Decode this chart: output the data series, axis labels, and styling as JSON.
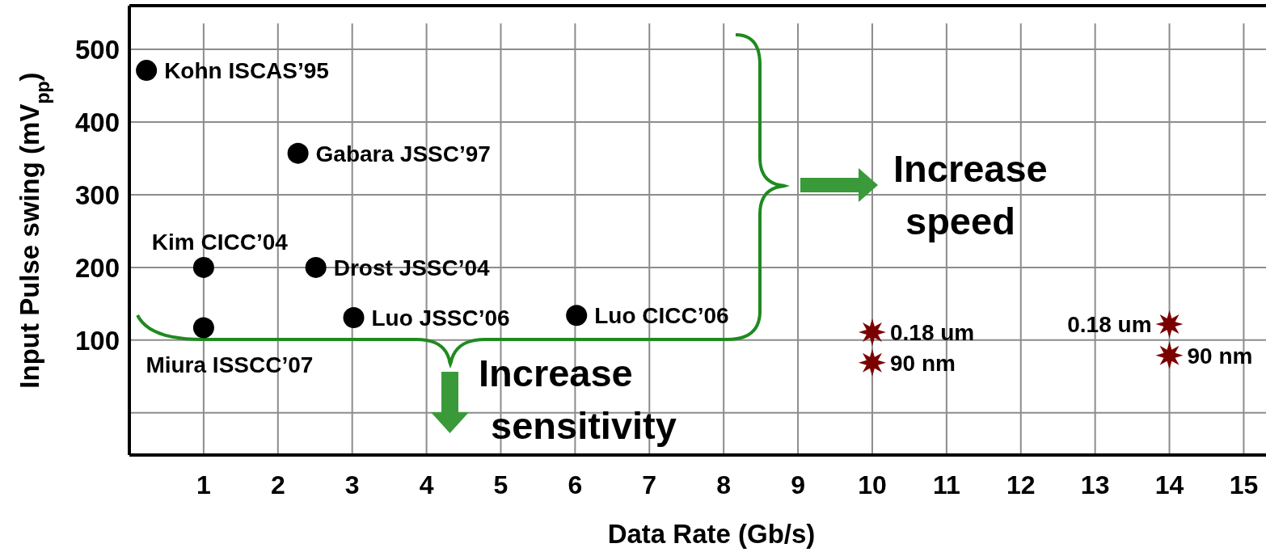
{
  "chart_data": {
    "type": "scatter",
    "xlabel": "Data Rate (Gb/s)",
    "ylabel": "Input Pulse swing (mV$_{pp}$)",
    "xlim": [
      0,
      15.3
    ],
    "xticks": [
      1,
      2,
      3,
      4,
      5,
      6,
      7,
      8,
      9,
      10,
      11,
      12,
      13,
      14,
      15
    ],
    "ylim": [
      -58,
      560
    ],
    "yticks": [
      {
        "value": 0,
        "label": null
      },
      100,
      200,
      300,
      400,
      500
    ],
    "grid": true,
    "series": [
      {
        "color": "#000000",
        "marker": "circle",
        "x": [
          0.23,
          2.27,
          1,
          2.51,
          3.02,
          1,
          6.02
        ],
        "values": [
          471,
          357,
          200,
          200,
          131,
          117,
          134
        ]
      },
      {
        "color": "#7a0000",
        "marker": "star",
        "x": [
          10,
          10,
          14,
          14
        ],
        "values": [
          111,
          69,
          122,
          79
        ]
      }
    ],
    "annotations": [
      {
        "text": "Kohn ISCAS’95",
        "x": 0.23,
        "y": 471
      },
      {
        "text": "Gabara JSSC’97",
        "x": 2.27,
        "y": 357
      },
      {
        "text": "Kim CICC’04",
        "x": 1,
        "y": 200
      },
      {
        "text": "Drost JSSC’04",
        "x": 2.51,
        "y": 200
      },
      {
        "text": "Luo JSSC’06",
        "x": 3.02,
        "y": 131
      },
      {
        "text": "Miura ISSCC’07",
        "x": 1,
        "y": 117
      },
      {
        "text": "Luo CICC’06",
        "x": 6.02,
        "y": 134
      },
      {
        "text": "0.18 um",
        "x": 10,
        "y": 111
      },
      {
        "text": "90 nm",
        "x": 10,
        "y": 69
      },
      {
        "text": "0.18 um",
        "x": 14,
        "y": 122
      },
      {
        "text": "90 nm",
        "x": 14,
        "y": 79
      },
      "Increase speed",
      "Increase sensitivity"
    ]
  }
}
